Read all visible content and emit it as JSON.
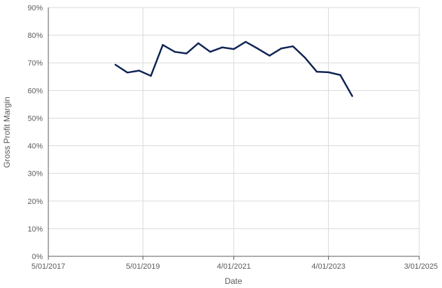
{
  "chart_data": {
    "type": "line",
    "xlabel": "Date",
    "ylabel": "Gross Profit Margin",
    "x_ticks": [
      "5/01/2017",
      "5/01/2019",
      "4/01/2021",
      "4/01/2023",
      "3/01/2025"
    ],
    "x_tick_dates": [
      "2017-05-01",
      "2019-05-01",
      "2021-04-01",
      "2023-04-01",
      "2025-03-01"
    ],
    "xlim": [
      "2017-05-01",
      "2025-03-01"
    ],
    "y_ticks": [
      "0%",
      "10%",
      "20%",
      "30%",
      "40%",
      "50%",
      "60%",
      "70%",
      "80%",
      "90%"
    ],
    "ylim": [
      0,
      90
    ],
    "grid": true,
    "line_color": "#0f2454",
    "series": [
      {
        "x": [
          "2018-10-01",
          "2019-01-01",
          "2019-04-01",
          "2019-07-01",
          "2019-10-01",
          "2020-01-01",
          "2020-04-01",
          "2020-07-01",
          "2020-10-01",
          "2021-01-01",
          "2021-04-01",
          "2021-07-01",
          "2021-10-01",
          "2022-01-01",
          "2022-04-01",
          "2022-07-01",
          "2022-10-01",
          "2023-01-01",
          "2023-04-01",
          "2023-07-01",
          "2023-10-01"
        ],
        "y": [
          69.3,
          66.5,
          67.2,
          65.3,
          76.5,
          74.0,
          73.4,
          77.1,
          74.0,
          75.6,
          75.0,
          77.6,
          75.2,
          72.6,
          75.2,
          76.0,
          71.9,
          66.8,
          66.6,
          65.6,
          58.0
        ]
      }
    ]
  }
}
